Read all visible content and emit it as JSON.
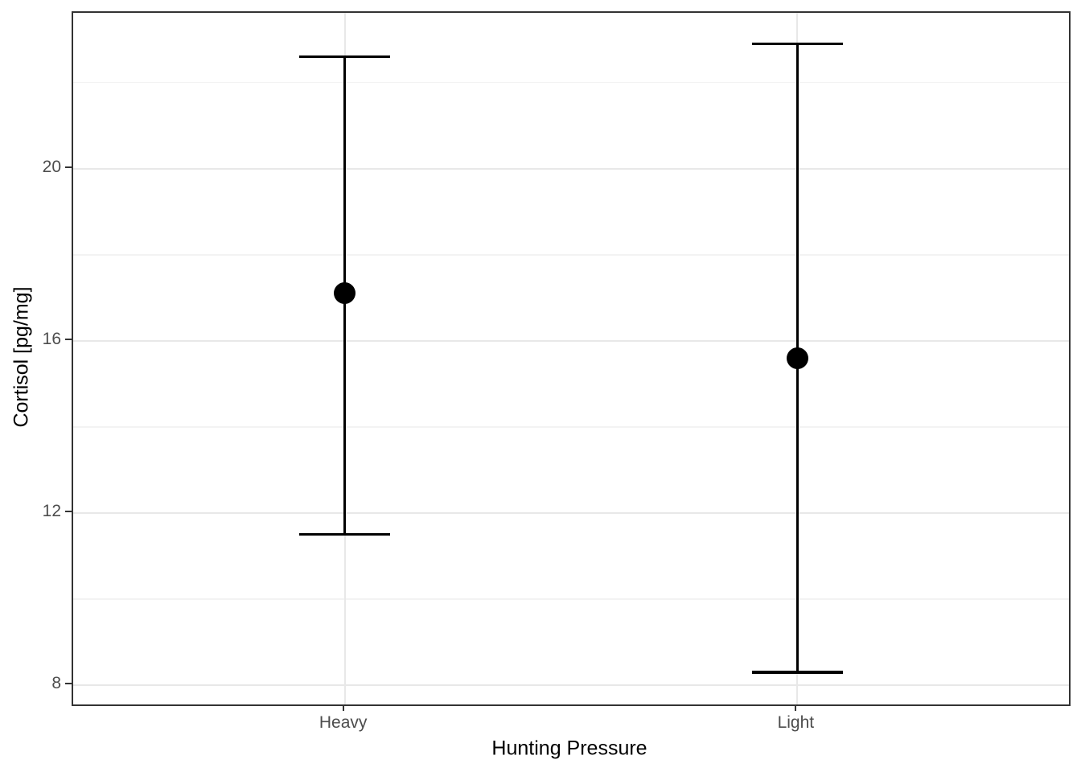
{
  "chart_data": {
    "type": "scatter",
    "subtype": "pointrange-with-error-bars",
    "title": "",
    "xlabel": "Hunting Pressure",
    "ylabel": "Cortisol [pg/mg]",
    "categories": [
      "Heavy",
      "Light"
    ],
    "series": [
      {
        "name": "Cortisol mean with confidence interval",
        "means": [
          17.1,
          15.6
        ],
        "ci_lower": [
          11.5,
          8.3
        ],
        "ci_upper": [
          22.6,
          22.9
        ]
      }
    ],
    "ylim": [
      7.55,
      23.62
    ],
    "yticks_major": [
      8,
      12,
      16,
      20
    ],
    "yticks_minor": [
      10,
      14,
      18,
      22
    ],
    "legend": "none",
    "grid": "horizontal major+minor, vertical major at category positions",
    "colors": {
      "point": "#000000",
      "error_bar": "#000000",
      "grid_major": "#e8e8e8",
      "grid_minor": "#f3f3f3",
      "panel_border": "#333333",
      "tick_label": "#4d4d4d",
      "axis_title": "#000000",
      "background": "#ffffff"
    }
  }
}
